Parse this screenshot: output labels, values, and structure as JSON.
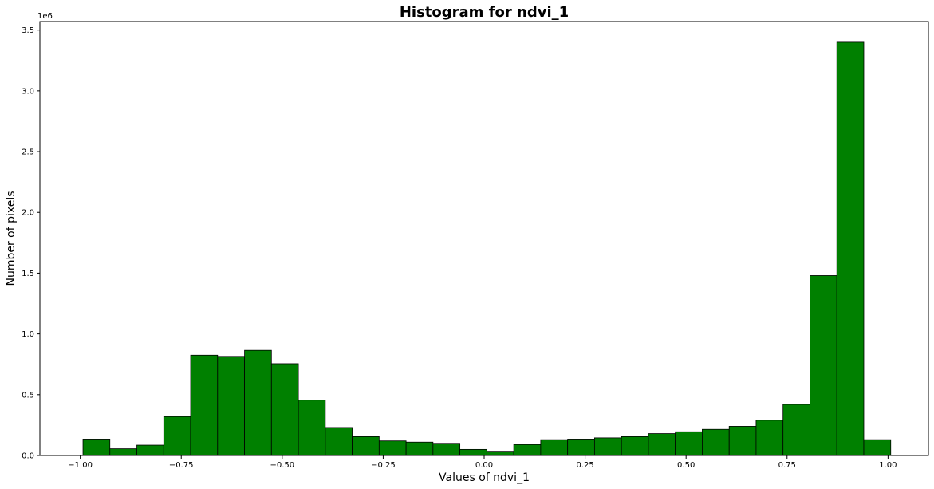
{
  "chart_data": {
    "type": "bar",
    "title": "Histogram for ndvi_1",
    "xlabel": "Values of ndvi_1",
    "ylabel": "Number of pixels",
    "y_offset_label": "1e6",
    "xlim": [
      -1.1,
      1.1
    ],
    "ylim": [
      0,
      3.57
    ],
    "grid": false,
    "bar_color": "#008000",
    "edge_color": "#000000",
    "x_ticks": [
      -1.0,
      -0.75,
      -0.5,
      -0.25,
      0.0,
      0.25,
      0.5,
      0.75,
      1.0
    ],
    "x_tick_labels": [
      "−1.00",
      "−0.75",
      "−0.50",
      "−0.25",
      "0.00",
      "0.25",
      "0.50",
      "0.75",
      "1.00"
    ],
    "y_ticks": [
      0.0,
      0.5,
      1.0,
      1.5,
      2.0,
      2.5,
      3.0,
      3.5
    ],
    "y_tick_labels": [
      "0.0",
      "0.5",
      "1.0",
      "1.5",
      "2.0",
      "2.5",
      "3.0",
      "3.5"
    ],
    "bin_edges": [
      -0.9933,
      -0.9267,
      -0.86,
      -0.7933,
      -0.7267,
      -0.66,
      -0.5933,
      -0.5267,
      -0.46,
      -0.3933,
      -0.3267,
      -0.26,
      -0.1933,
      -0.1267,
      -0.06,
      0.0067,
      0.0733,
      0.14,
      0.2067,
      0.2733,
      0.34,
      0.4067,
      0.4733,
      0.54,
      0.6067,
      0.6733,
      0.74,
      0.8067,
      0.8733,
      0.94,
      1.0067
    ],
    "values": [
      0.135,
      0.055,
      0.085,
      0.32,
      0.825,
      0.815,
      0.865,
      0.755,
      0.455,
      0.23,
      0.155,
      0.12,
      0.11,
      0.1,
      0.05,
      0.035,
      0.09,
      0.13,
      0.135,
      0.145,
      0.155,
      0.18,
      0.195,
      0.215,
      0.24,
      0.29,
      0.42,
      1.48,
      3.4,
      0.13
    ]
  }
}
